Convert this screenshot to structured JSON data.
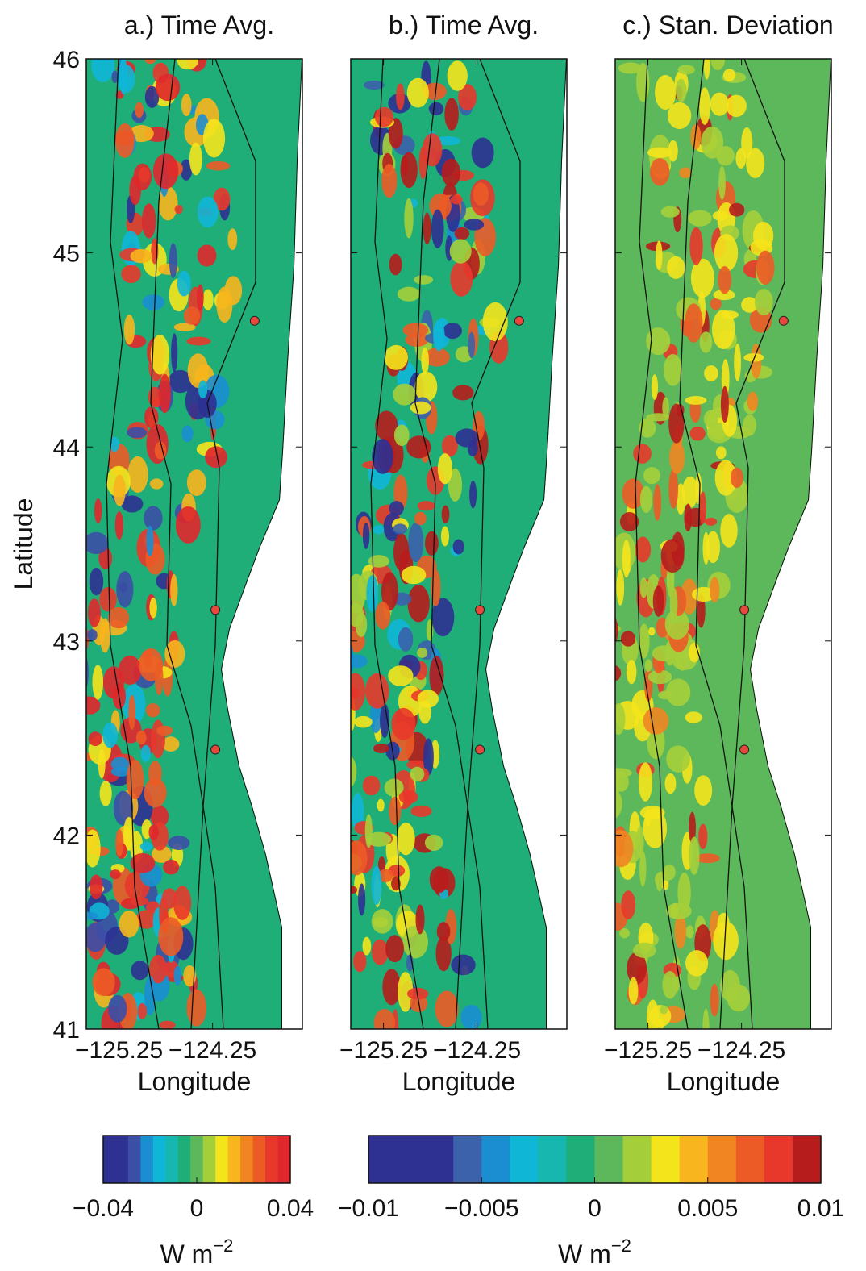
{
  "chart_data": [
    {
      "type": "map",
      "title": "a.) Time Avg.",
      "xlabel": "Longitude",
      "ylabel": "Latitude",
      "xlim": [
        -125.6,
        -123.29
      ],
      "ylim": [
        41,
        46
      ],
      "xticks": [
        {
          "value": -125.25,
          "label": "−125.25"
        },
        {
          "value": -124.25,
          "label": "−124.25"
        }
      ],
      "yticks": [
        41,
        42,
        43,
        44,
        45,
        46
      ],
      "background": "#1fae78",
      "points": {
        "x": [
          -123.8,
          -124.22,
          -124.22
        ],
        "y": [
          44.65,
          43.16,
          42.44
        ],
        "color": "#e8473b"
      }
    },
    {
      "type": "map",
      "title": "b.) Time Avg.",
      "xlabel": "Longitude",
      "xlim": [
        -125.6,
        -123.29
      ],
      "ylim": [
        41,
        46
      ],
      "xticks": [
        {
          "value": -125.25,
          "label": "−125.25"
        },
        {
          "value": -124.25,
          "label": "−124.25"
        }
      ],
      "yticks": [
        41,
        42,
        43,
        44,
        45,
        46
      ],
      "background": "#1fae78",
      "points": {
        "x": [
          -123.8,
          -124.22,
          -124.22
        ],
        "y": [
          44.65,
          43.16,
          42.44
        ],
        "color": "#e8473b"
      }
    },
    {
      "type": "map",
      "title": "c.) Stan. Deviation",
      "xlabel": "Longitude",
      "xlim": [
        -125.6,
        -123.29
      ],
      "ylim": [
        41,
        46
      ],
      "xticks": [
        {
          "value": -125.25,
          "label": "−125.25"
        },
        {
          "value": -124.25,
          "label": "−124.25"
        }
      ],
      "yticks": [
        41,
        42,
        43,
        44,
        45,
        46
      ],
      "background": "#5cb85a",
      "points": {
        "x": [
          -123.8,
          -124.22,
          -124.22
        ],
        "y": [
          44.65,
          43.16,
          42.44
        ],
        "color": "#e8473b"
      }
    }
  ],
  "colorbars": [
    {
      "lim": [
        -0.04,
        0.04
      ],
      "ticks": [
        {
          "value": -0.04,
          "label": "−0.04"
        },
        0,
        0.04
      ],
      "units": "W m",
      "units_exponent": "−2",
      "colors": [
        "#2e3192",
        "#2e3192",
        "#3b4fa6",
        "#1b8ed1",
        "#10b6d6",
        "#17b7b0",
        "#1fae78",
        "#5cb85a",
        "#a5cf3a",
        "#f4e41c",
        "#f8b51d",
        "#f08522",
        "#ec5b26",
        "#e8382b",
        "#e0272b"
      ]
    },
    {
      "lim": [
        -0.01,
        0.01
      ],
      "ticks": [
        {
          "value": -0.01,
          "label": "−0.01"
        },
        {
          "value": -0.005,
          "label": "−0.005"
        },
        0,
        0.005,
        0.01
      ],
      "units": "W m",
      "units_exponent": "−2",
      "colors": [
        "#2e3192",
        "#2e3192",
        "#2e3192",
        "#3b62ab",
        "#1b8ed1",
        "#10b6d6",
        "#17b7b0",
        "#1fae78",
        "#5cb85a",
        "#a5cf3a",
        "#f4e41c",
        "#f8b51d",
        "#f08522",
        "#ec5b26",
        "#e8382b",
        "#b71c1c"
      ]
    }
  ]
}
